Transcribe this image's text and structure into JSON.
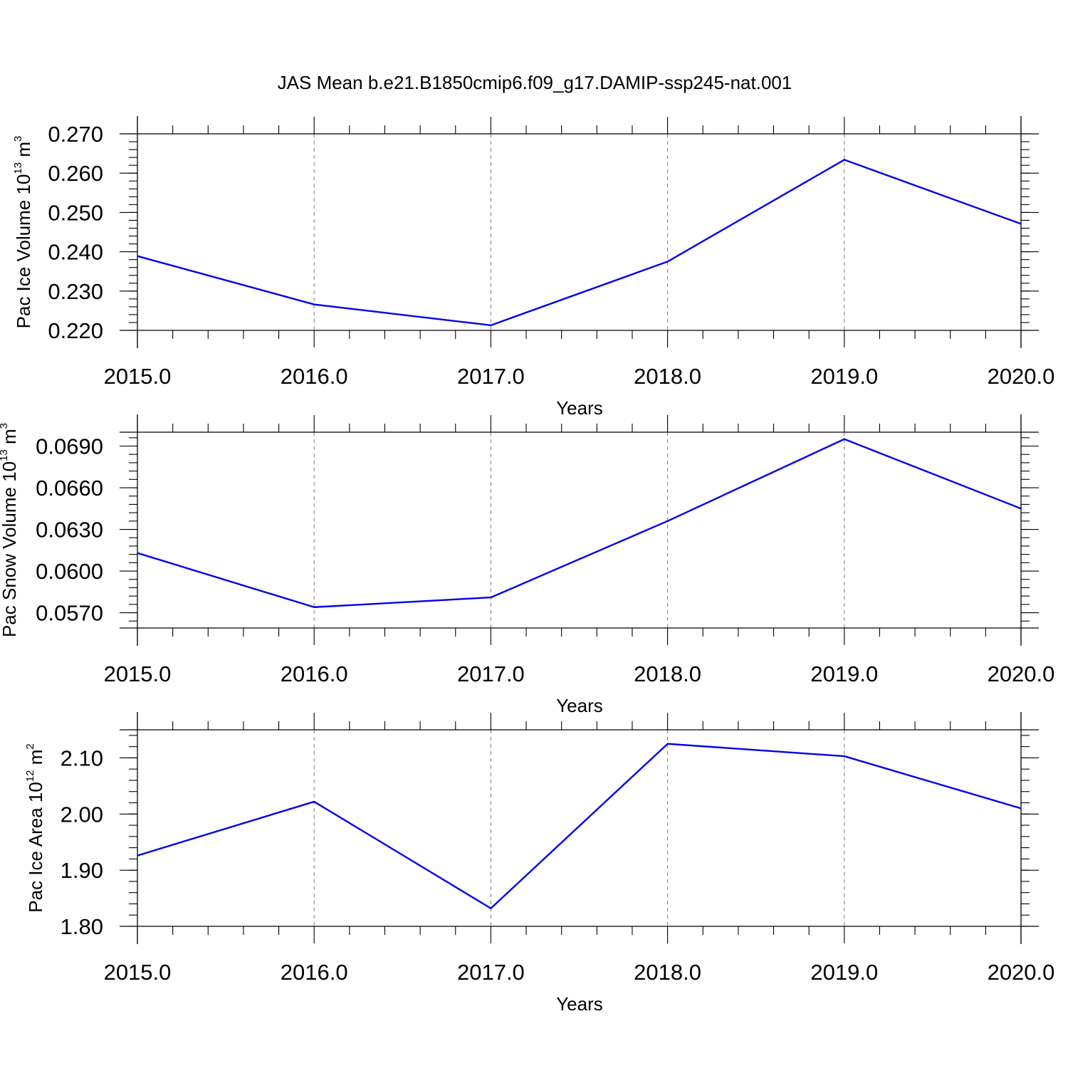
{
  "title": "JAS Mean b.e21.B1850cmip6.f09_g17.DAMIP-ssp245-nat.001",
  "chart_data": [
    {
      "type": "line",
      "panel": "top",
      "x": [
        2015.0,
        2016.0,
        2017.0,
        2018.0,
        2019.0,
        2020.0
      ],
      "series": [
        {
          "values": [
            0.2389,
            0.2266,
            0.2213,
            0.2375,
            0.2634,
            0.2471
          ]
        }
      ],
      "xlim": [
        2015.0,
        2020.0
      ],
      "ylim": [
        0.22,
        0.27
      ],
      "yticks": [
        0.22,
        0.23,
        0.24,
        0.25,
        0.26,
        0.27
      ],
      "ytick_labels": [
        "0.220",
        "0.230",
        "0.240",
        "0.250",
        "0.260",
        "0.270"
      ],
      "xtick_labels": [
        "2015.0",
        "2016.0",
        "2017.0",
        "2018.0",
        "2019.0",
        "2020.0"
      ],
      "xlabel": "Years",
      "ylabel": {
        "text": "Pac Ice Volume 10",
        "sup": "13",
        "unit": " m",
        "unit_sup": "3"
      },
      "color": "#0000ee",
      "grid": "vertical dashed at major x ticks"
    },
    {
      "type": "line",
      "panel": "middle",
      "x": [
        2015.0,
        2016.0,
        2017.0,
        2018.0,
        2019.0,
        2020.0
      ],
      "series": [
        {
          "values": [
            0.0613,
            0.0574,
            0.0581,
            0.0636,
            0.0695,
            0.0645
          ]
        }
      ],
      "xlim": [
        2015.0,
        2020.0
      ],
      "ylim": [
        0.0559,
        0.07
      ],
      "yticks": [
        0.057,
        0.06,
        0.063,
        0.066,
        0.069
      ],
      "ytick_labels": [
        "0.0570",
        "0.0600",
        "0.0630",
        "0.0660",
        "0.0690"
      ],
      "xtick_labels": [
        "2015.0",
        "2016.0",
        "2017.0",
        "2018.0",
        "2019.0",
        "2020.0"
      ],
      "xlabel": "Years",
      "ylabel": {
        "text": "Pac Snow Volume 10",
        "sup": "13",
        "unit": " m",
        "unit_sup": "3"
      },
      "color": "#0000ee",
      "grid": "vertical dashed at major x ticks"
    },
    {
      "type": "line",
      "panel": "bottom",
      "x": [
        2015.0,
        2016.0,
        2017.0,
        2018.0,
        2019.0,
        2020.0
      ],
      "series": [
        {
          "values": [
            1.926,
            2.022,
            1.832,
            2.125,
            2.103,
            2.01
          ]
        }
      ],
      "xlim": [
        2015.0,
        2020.0
      ],
      "ylim": [
        1.8,
        2.15
      ],
      "yticks": [
        1.8,
        1.9,
        2.0,
        2.1
      ],
      "ytick_labels": [
        "1.80",
        "1.90",
        "2.00",
        "2.10"
      ],
      "xtick_labels": [
        "2015.0",
        "2016.0",
        "2017.0",
        "2018.0",
        "2019.0",
        "2020.0"
      ],
      "xlabel": "Years",
      "ylabel": {
        "text": "Pac Ice Area 10",
        "sup": "12",
        "unit": " m",
        "unit_sup": "2"
      },
      "color": "#0000ee",
      "grid": "vertical dashed at major x ticks"
    }
  ]
}
